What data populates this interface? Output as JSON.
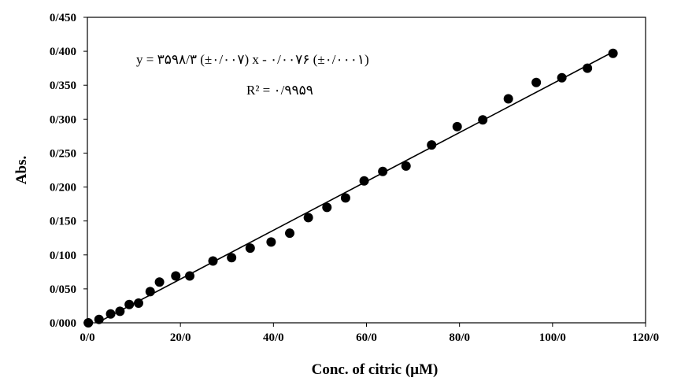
{
  "chart_data": {
    "type": "scatter",
    "title": "",
    "xlabel": "Conc. of citric (µM)",
    "ylabel": "Abs.",
    "xlim": [
      0,
      120
    ],
    "ylim": [
      0,
      0.45
    ],
    "x_ticks": [
      0,
      20,
      40,
      60,
      80,
      100,
      120
    ],
    "x_tick_labels": [
      "0/0",
      "20/0",
      "40/0",
      "60/0",
      "80/0",
      "100/0",
      "120/0"
    ],
    "y_ticks": [
      0,
      0.05,
      0.1,
      0.15,
      0.2,
      0.25,
      0.3,
      0.35,
      0.4,
      0.45
    ],
    "y_tick_labels": [
      "0/000",
      "0/050",
      "0/100",
      "0/150",
      "0/200",
      "0/250",
      "0/300",
      "0/350",
      "0/400",
      "0/450"
    ],
    "grid": false,
    "legend": "none",
    "marker_color": "#000000",
    "line_color": "#000000",
    "series": [
      {
        "x": [
          0.2,
          2.5,
          5.0,
          7.0,
          9.0,
          11.0,
          13.5,
          15.5,
          19.0,
          22.0,
          27.0,
          31.0,
          35.0,
          39.5,
          43.5,
          47.5,
          51.5,
          55.5,
          59.5,
          63.5,
          68.5,
          74.0,
          79.5,
          85.0,
          90.5,
          96.5,
          102.0,
          107.5,
          113.0
        ],
        "y": [
          0.0,
          0.005,
          0.013,
          0.017,
          0.027,
          0.029,
          0.046,
          0.06,
          0.069,
          0.069,
          0.091,
          0.096,
          0.11,
          0.119,
          0.132,
          0.155,
          0.17,
          0.184,
          0.209,
          0.223,
          0.231,
          0.262,
          0.289,
          0.299,
          0.33,
          0.354,
          0.361,
          0.375,
          0.397
        ]
      }
    ],
    "trendline": {
      "slope": 0.0035983,
      "intercept": -0.0076
    },
    "annotations": {
      "equation": "y = ۳۵۹۸/۳ (±۰/۰۰۷) x - ۰/۰۰۷۶ (±۰/۰۰۰۱)",
      "r_squared": "R² = ۰/۹۹۵۹"
    }
  }
}
